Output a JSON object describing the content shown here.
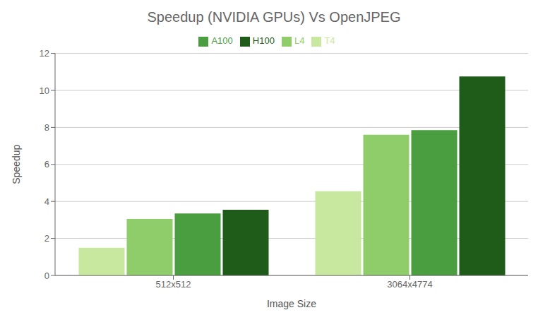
{
  "chart_data": {
    "type": "bar",
    "title": "Speedup (NVIDIA GPUs) Vs OpenJPEG",
    "x_label": "Image Size",
    "y_label": "Speedup",
    "categories": [
      "512x512",
      "3064x4774"
    ],
    "series": [
      {
        "name": "T4",
        "color": "#c8e8a0",
        "values": [
          1.5,
          4.55
        ]
      },
      {
        "name": "L4",
        "color": "#8fcc6a",
        "values": [
          3.05,
          7.6
        ]
      },
      {
        "name": "A100",
        "color": "#4a9e3f",
        "values": [
          3.35,
          7.85
        ]
      },
      {
        "name": "H100",
        "color": "#1f5c1a",
        "values": [
          3.55,
          10.75
        ]
      }
    ],
    "ylim": [
      0,
      12
    ],
    "yticks": [
      0,
      2,
      4,
      6,
      8,
      10,
      12
    ],
    "grid": true,
    "legend": "top"
  }
}
